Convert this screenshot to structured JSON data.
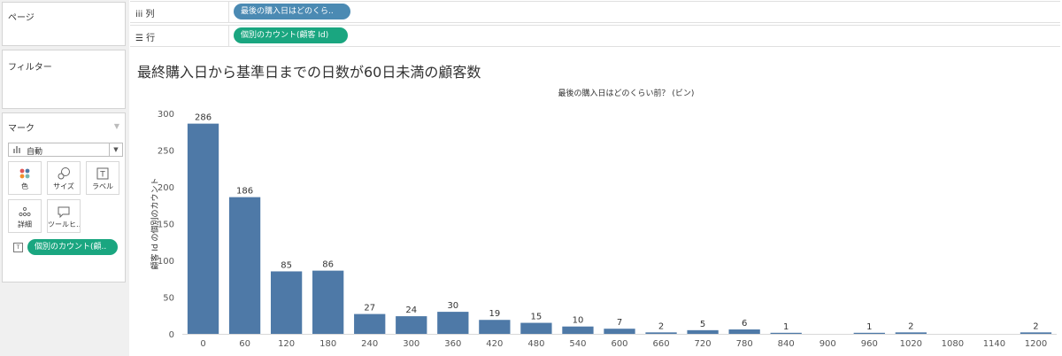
{
  "left_pane": {
    "pages_label": "ページ",
    "filters_label": "フィルター",
    "marks": {
      "title": "マーク",
      "mark_type": "自動",
      "buttons": [
        {
          "label": "色",
          "icon": "color-dots-icon"
        },
        {
          "label": "サイズ",
          "icon": "size-icon"
        },
        {
          "label": "ラベル",
          "icon": "label-icon"
        },
        {
          "label": "詳細",
          "icon": "detail-icon"
        },
        {
          "label": "ツールヒ…",
          "icon": "tooltip-icon"
        }
      ],
      "pill": "個別のカウント(顧..",
      "pill_icon": "T"
    }
  },
  "shelves": {
    "columns_icon": "iii",
    "columns_label": "列",
    "columns_pill": "最後の購入日はどのくら..",
    "rows_icon": "☰",
    "rows_label": "行",
    "rows_pill": "個別のカウント(顧客 Id)"
  },
  "view": {
    "title": "最終購入日から基準日までの日数が60日未満の顧客数"
  },
  "colors": {
    "bar": "#4e79a7",
    "teal_pill": "#1aa680",
    "blue_pill": "#4b8ab3",
    "gridline": "#e6e6e6"
  },
  "chart_data": {
    "type": "bar",
    "title": "",
    "xlabel": "最後の購入日はどのくらい前？ (ビン)",
    "ylabel": "顧客 Id の個別のカウント",
    "categories": [
      "0",
      "60",
      "120",
      "180",
      "240",
      "300",
      "360",
      "420",
      "480",
      "540",
      "600",
      "660",
      "720",
      "780",
      "840",
      "900",
      "960",
      "1020",
      "1080",
      "1140",
      "1200"
    ],
    "values": [
      286,
      186,
      85,
      86,
      27,
      24,
      30,
      19,
      15,
      10,
      7,
      2,
      5,
      6,
      1,
      null,
      1,
      2,
      null,
      null,
      2
    ],
    "ylim": [
      0,
      300
    ],
    "yticks": [
      0,
      50,
      100,
      150,
      200,
      250,
      300
    ],
    "grid": false,
    "data_labels": true
  }
}
